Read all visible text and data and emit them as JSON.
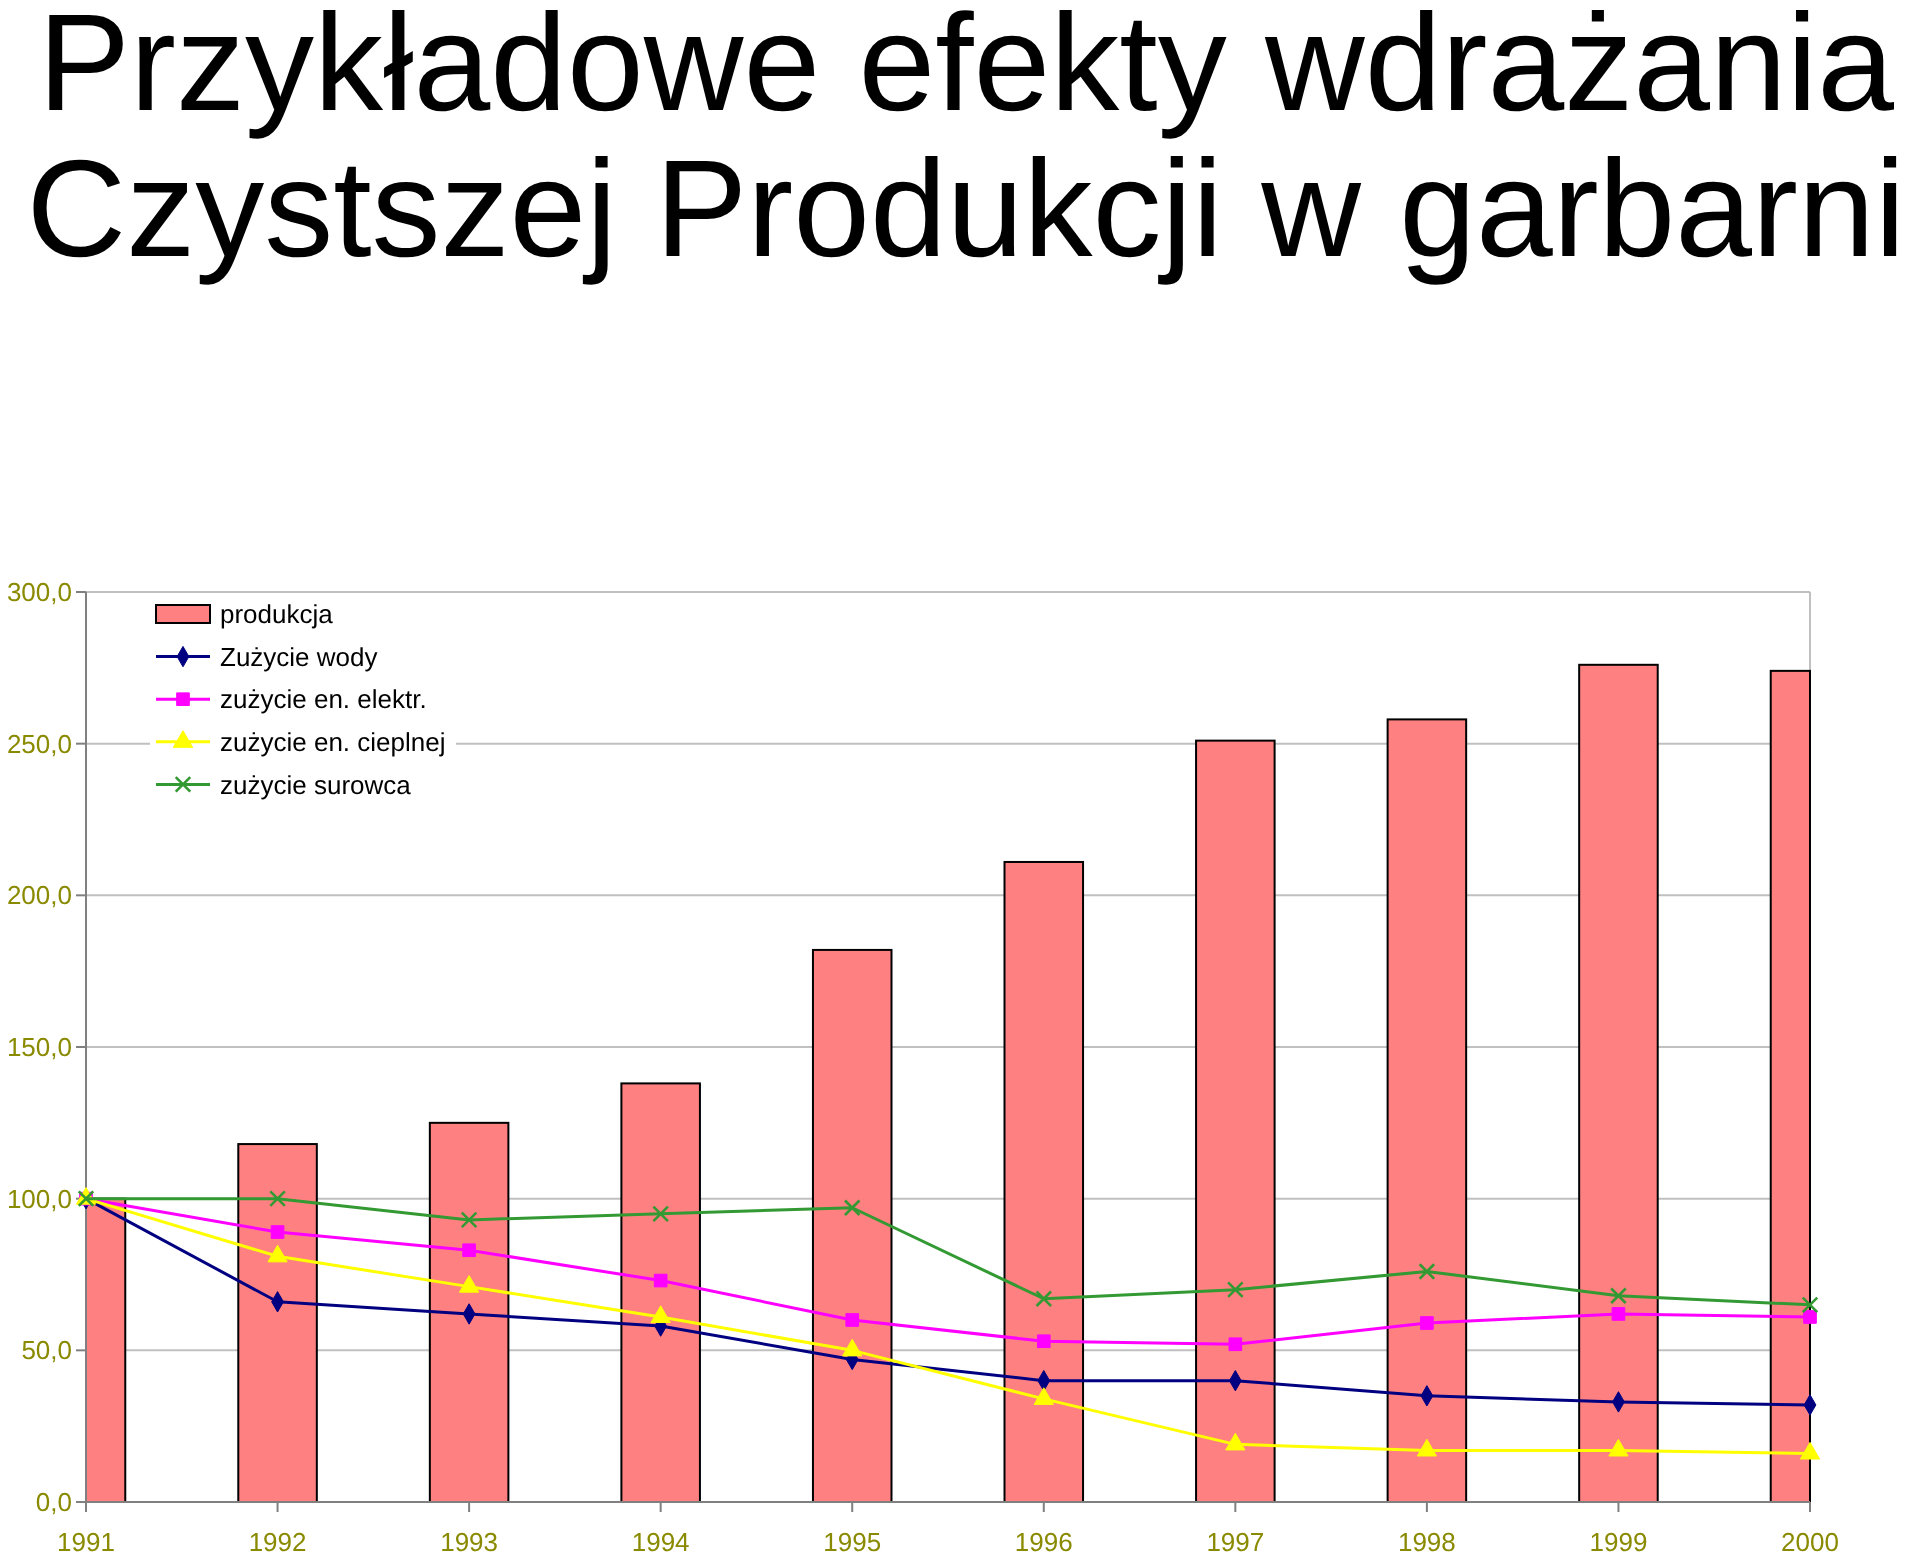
{
  "chart_data": {
    "type": "bar",
    "title": "Przykładowe efekty wdrażania\nCzystszej Produkcji w garbarni",
    "categories": [
      "1991",
      "1992",
      "1993",
      "1994",
      "1995",
      "1996",
      "1997",
      "1998",
      "1999",
      "2000"
    ],
    "series": [
      {
        "name": "produkcja",
        "color": "#ff8080",
        "values": [
          100,
          118,
          125,
          138,
          182,
          211,
          251,
          258,
          276,
          274
        ]
      },
      {
        "name": "Zużycie wody",
        "type": "line",
        "color": "#000080",
        "marker": "diamond",
        "values": [
          100,
          66,
          62,
          58,
          47,
          40,
          40,
          35,
          33,
          32
        ]
      },
      {
        "name": "zużycie en. elektr.",
        "type": "line",
        "color": "#ff00ff",
        "marker": "square",
        "values": [
          100,
          89,
          83,
          73,
          60,
          53,
          52,
          59,
          62,
          61
        ]
      },
      {
        "name": "zużycie en. cieplnej",
        "type": "line",
        "color": "#ffff00",
        "marker": "triangle",
        "values": [
          100,
          81,
          71,
          61,
          50,
          34,
          19,
          17,
          17,
          16
        ]
      },
      {
        "name": "zużycie surowca",
        "type": "line",
        "color": "#339933",
        "marker": "cross",
        "values": [
          100,
          100,
          93,
          95,
          97,
          67,
          70,
          76,
          68,
          65
        ]
      }
    ],
    "ylim": [
      0,
      300
    ],
    "yticks": [
      {
        "value": 0,
        "label": "0,0"
      },
      {
        "value": 50,
        "label": "50,0"
      },
      {
        "value": 100,
        "label": "100,0"
      },
      {
        "value": 150,
        "label": "150,0"
      },
      {
        "value": 200,
        "label": "200,0"
      },
      {
        "value": 250,
        "label": "250,0"
      },
      {
        "value": 300,
        "label": "300,0"
      }
    ],
    "grid": "y",
    "legend": "top left"
  }
}
